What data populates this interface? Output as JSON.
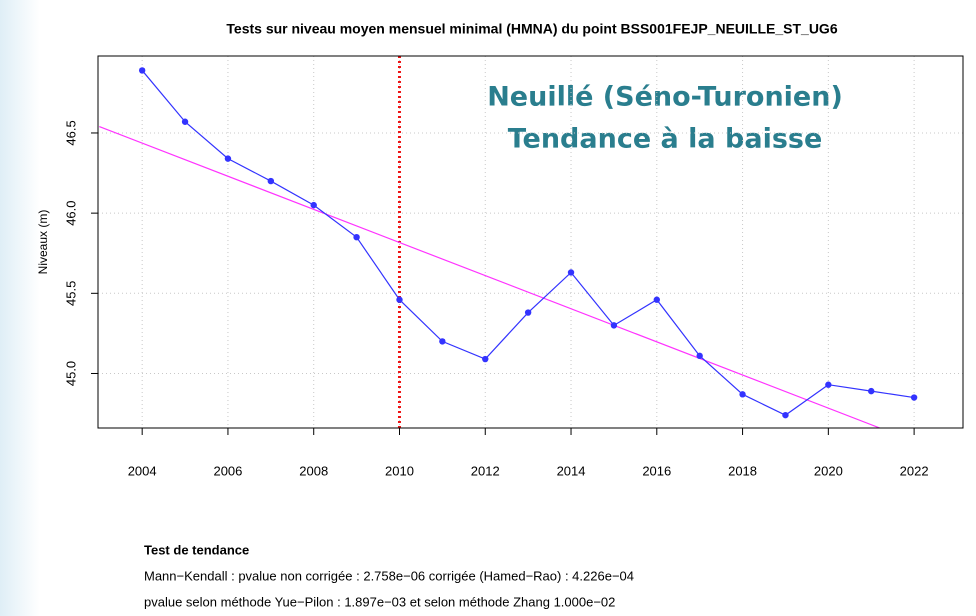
{
  "chart_data": {
    "type": "line",
    "title": "Tests sur niveau moyen mensuel minimal (HMNA) du point BSS001FEJP_NEUILLE_ST_UG6",
    "ylabel": "Niveaux  (m)",
    "x": [
      2004,
      2005,
      2006,
      2007,
      2008,
      2009,
      2010,
      2011,
      2012,
      2013,
      2014,
      2015,
      2016,
      2017,
      2018,
      2019,
      2020,
      2021,
      2022
    ],
    "series": [
      {
        "color": "#3333ff",
        "values": [
          46.89,
          46.57,
          46.34,
          46.2,
          46.05,
          45.85,
          45.46,
          45.2,
          45.09,
          45.38,
          45.63,
          45.3,
          45.46,
          45.11,
          44.87,
          44.74,
          44.93,
          44.89,
          44.85
        ]
      }
    ],
    "trend": {
      "color": "#ff33ff",
      "x": [
        2003,
        2021.2
      ],
      "values": [
        46.54,
        44.66
      ]
    },
    "breakpoint": {
      "color": "#ee1111",
      "x": 2010
    },
    "xlim": [
      2002.97,
      2023.14
    ],
    "ylim": [
      44.66,
      46.98
    ],
    "xticks": [
      2004,
      2006,
      2008,
      2010,
      2012,
      2014,
      2016,
      2018,
      2020,
      2022
    ],
    "yticks": [
      {
        "value": 45,
        "label": "45.0"
      },
      45.5,
      {
        "value": 46,
        "label": "46.0"
      },
      46.5
    ],
    "grid": true,
    "annotations": [
      "Neuillé (Séno-Turonien)",
      "Tendance à la baisse"
    ],
    "footer": {
      "heading": "Test de tendance",
      "lines": [
        "Mann−Kendall : pvalue non corrigée : 2.758e−06  corrigée (Hamed−Rao) :  4.226e−04",
        "pvalue selon méthode Yue−Pilon :  1.897e−03   et selon méthode Zhang 1.000e−02"
      ]
    }
  }
}
